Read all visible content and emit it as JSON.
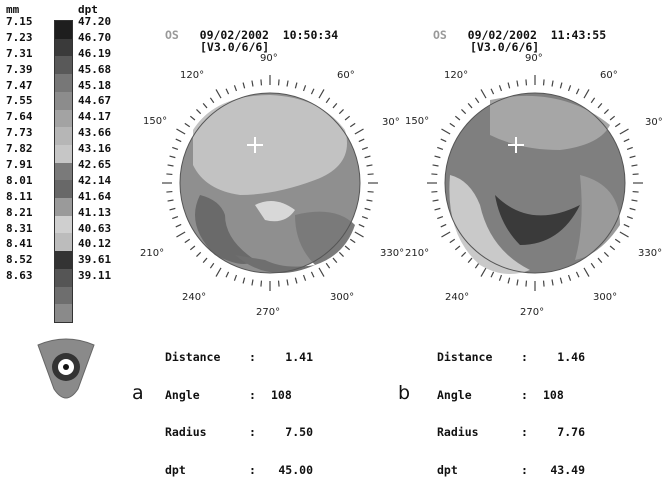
{
  "scale": {
    "mm_label": "mm",
    "dpt_label": "dpt",
    "mm": [
      "7.15",
      "7.23",
      "7.31",
      "7.39",
      "7.47",
      "7.55",
      "7.64",
      "7.73",
      "7.82",
      "7.91",
      "8.01",
      "8.11",
      "8.21",
      "8.31",
      "8.41",
      "8.52",
      "8.63"
    ],
    "dpt": [
      "47.20",
      "46.70",
      "46.19",
      "45.68",
      "45.18",
      "44.67",
      "44.17",
      "43.66",
      "43.16",
      "42.65",
      "42.14",
      "41.64",
      "41.13",
      "40.63",
      "40.12",
      "39.61",
      "39.11"
    ],
    "colors": [
      "#1e1e1e",
      "#3a3a3a",
      "#595959",
      "#777",
      "#8c8c8c",
      "#a3a3a3",
      "#b6b6b6",
      "#c6c6c6",
      "#7a7a7a",
      "#686868",
      "#9a9a9a",
      "#cfcfcf",
      "#bcbcbc",
      "#333",
      "#555",
      "#6e6e6e",
      "#8a8a8a"
    ]
  },
  "maps": [
    {
      "eye": "OS",
      "date": "09/02/2002",
      "time": "10:50:34",
      "version": "[V3.0/6/6]",
      "angles": [
        "90°",
        "60°",
        "30°",
        "330°",
        "300°",
        "270°",
        "240°",
        "210°",
        "150°",
        "120°"
      ],
      "readout": {
        "distance_label": "Distance",
        "distance": "1.41",
        "angle_label": "Angle",
        "angle": "108",
        "radius_label": "Radius",
        "radius": "7.50",
        "dpt_label": "dpt",
        "dpt": "45.00"
      },
      "panel_label": "a"
    },
    {
      "eye": "OS",
      "date": "09/02/2002",
      "time": "11:43:55",
      "version": "[V3.0/6/6]",
      "angles": [
        "90°",
        "60°",
        "30°",
        "330°",
        "300°",
        "270°",
        "240°",
        "210°",
        "150°",
        "120°"
      ],
      "readout": {
        "distance_label": "Distance",
        "distance": "1.46",
        "angle_label": "Angle",
        "angle": "108",
        "radius_label": "Radius",
        "radius": "7.76",
        "dpt_label": "dpt",
        "dpt": "43.49"
      },
      "panel_label": "b"
    }
  ]
}
